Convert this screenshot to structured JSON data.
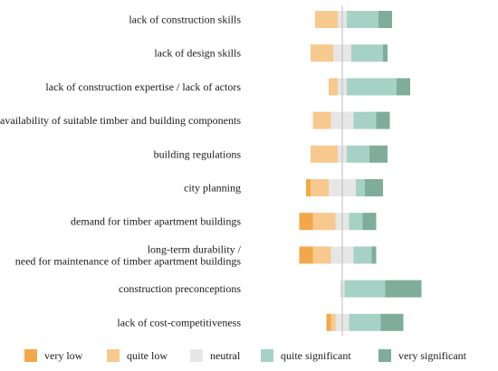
{
  "chart_data": {
    "type": "bar",
    "orientation": "horizontal",
    "stacked": "diverging",
    "center_line": "neutral-midpoint",
    "legend_position": "bottom",
    "grid": false,
    "colors": {
      "very_low": "#f2a84a",
      "quite_low": "#f7c98e",
      "neutral": "#e6e6e6",
      "quite_significant": "#a6d2c5",
      "very_significant": "#7fac9b",
      "center_line": "#bdbdbd"
    },
    "categories": [
      [
        "lack of construction skills"
      ],
      [
        "lack of design skills"
      ],
      [
        "lack of construction expertise / lack of actors"
      ],
      [
        "availability of suitable timber and building components"
      ],
      [
        "building regulations"
      ],
      [
        "city planning"
      ],
      [
        "demand for timber apartment buildings"
      ],
      [
        "long-term durability /",
        "need for maintenance of timber apartment buildings"
      ],
      [
        "construction preconceptions"
      ],
      [
        "lack of cost-competitiveness"
      ]
    ],
    "series": [
      {
        "name": "very low",
        "values": [
          0,
          0,
          0,
          0,
          0,
          2,
          6,
          6,
          0,
          2
        ]
      },
      {
        "name": "quite low",
        "values": [
          10,
          10,
          4,
          8,
          12,
          8,
          10,
          8,
          0,
          2
        ]
      },
      {
        "name": "neutral",
        "values": [
          4,
          8,
          4,
          10,
          4,
          12,
          6,
          10,
          2,
          6
        ]
      },
      {
        "name": "quite significant",
        "values": [
          14,
          14,
          22,
          10,
          10,
          4,
          6,
          8,
          18,
          14
        ]
      },
      {
        "name": "very significant",
        "values": [
          6,
          2,
          6,
          6,
          8,
          8,
          6,
          2,
          16,
          10
        ]
      }
    ]
  }
}
